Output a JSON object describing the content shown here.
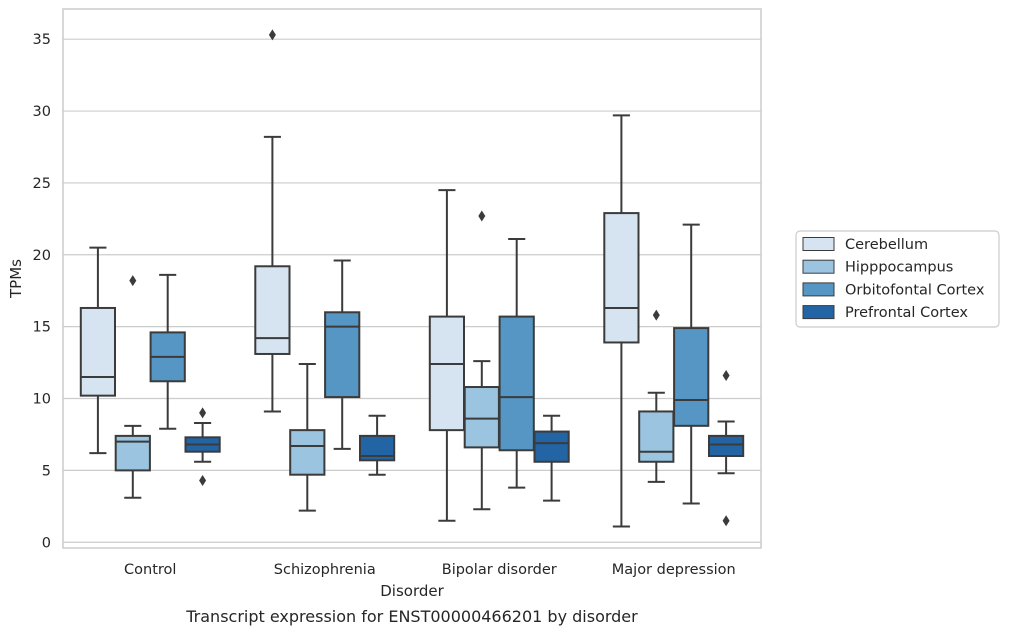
{
  "chart_data": {
    "type": "box",
    "caption": "Transcript expression for ENST00000466201 by disorder",
    "xlabel": "Disorder",
    "ylabel": "TPMs",
    "ylim": [
      -0.4,
      37.1
    ],
    "yticks": [
      0,
      5,
      10,
      15,
      20,
      25,
      30,
      35
    ],
    "grid": "horizontal",
    "legend_position": "right",
    "categories": [
      "Control",
      "Schizophrenia",
      "Bipolar disorder",
      "Major depression"
    ],
    "series": [
      {
        "name": "Cerebellum",
        "color": "#d6e4f2",
        "boxes": [
          {
            "whislo": 6.2,
            "q1": 10.2,
            "med": 11.5,
            "q3": 16.3,
            "whishi": 20.5,
            "fliers": []
          },
          {
            "whislo": 9.1,
            "q1": 13.1,
            "med": 14.2,
            "q3": 19.2,
            "whishi": 28.2,
            "fliers": [
              35.3
            ]
          },
          {
            "whislo": 1.5,
            "q1": 7.8,
            "med": 12.4,
            "q3": 15.7,
            "whishi": 24.5,
            "fliers": []
          },
          {
            "whislo": 1.1,
            "q1": 13.9,
            "med": 16.3,
            "q3": 22.9,
            "whishi": 29.7,
            "fliers": []
          }
        ]
      },
      {
        "name": "Hipppocampus",
        "color": "#9ac4df",
        "boxes": [
          {
            "whislo": 3.1,
            "q1": 5.0,
            "med": 7.0,
            "q3": 7.4,
            "whishi": 8.1,
            "fliers": [
              18.2
            ]
          },
          {
            "whislo": 2.2,
            "q1": 4.7,
            "med": 6.7,
            "q3": 7.8,
            "whishi": 12.4,
            "fliers": []
          },
          {
            "whislo": 2.3,
            "q1": 6.6,
            "med": 8.6,
            "q3": 10.8,
            "whishi": 12.6,
            "fliers": [
              22.7
            ]
          },
          {
            "whislo": 4.2,
            "q1": 5.6,
            "med": 6.3,
            "q3": 9.1,
            "whishi": 10.4,
            "fliers": [
              15.8
            ]
          }
        ]
      },
      {
        "name": "Orbitofontal Cortex",
        "color": "#5596c4",
        "boxes": [
          {
            "whislo": 7.9,
            "q1": 11.2,
            "med": 12.9,
            "q3": 14.6,
            "whishi": 18.6,
            "fliers": []
          },
          {
            "whislo": 6.5,
            "q1": 10.1,
            "med": 15.0,
            "q3": 16.0,
            "whishi": 19.6,
            "fliers": []
          },
          {
            "whislo": 3.8,
            "q1": 6.4,
            "med": 10.1,
            "q3": 15.7,
            "whishi": 21.1,
            "fliers": []
          },
          {
            "whislo": 2.7,
            "q1": 8.1,
            "med": 9.9,
            "q3": 14.9,
            "whishi": 22.1,
            "fliers": []
          }
        ]
      },
      {
        "name": "Prefrontal Cortex",
        "color": "#2264a4",
        "boxes": [
          {
            "whislo": 5.6,
            "q1": 6.3,
            "med": 6.8,
            "q3": 7.3,
            "whishi": 8.3,
            "fliers": [
              4.3,
              9.0
            ]
          },
          {
            "whislo": 4.7,
            "q1": 5.7,
            "med": 6.0,
            "q3": 7.4,
            "whishi": 8.8,
            "fliers": []
          },
          {
            "whislo": 2.9,
            "q1": 5.6,
            "med": 6.9,
            "q3": 7.7,
            "whishi": 8.8,
            "fliers": []
          },
          {
            "whislo": 4.8,
            "q1": 6.0,
            "med": 6.8,
            "q3": 7.4,
            "whishi": 8.4,
            "fliers": [
              1.5,
              11.6
            ]
          }
        ]
      }
    ]
  }
}
